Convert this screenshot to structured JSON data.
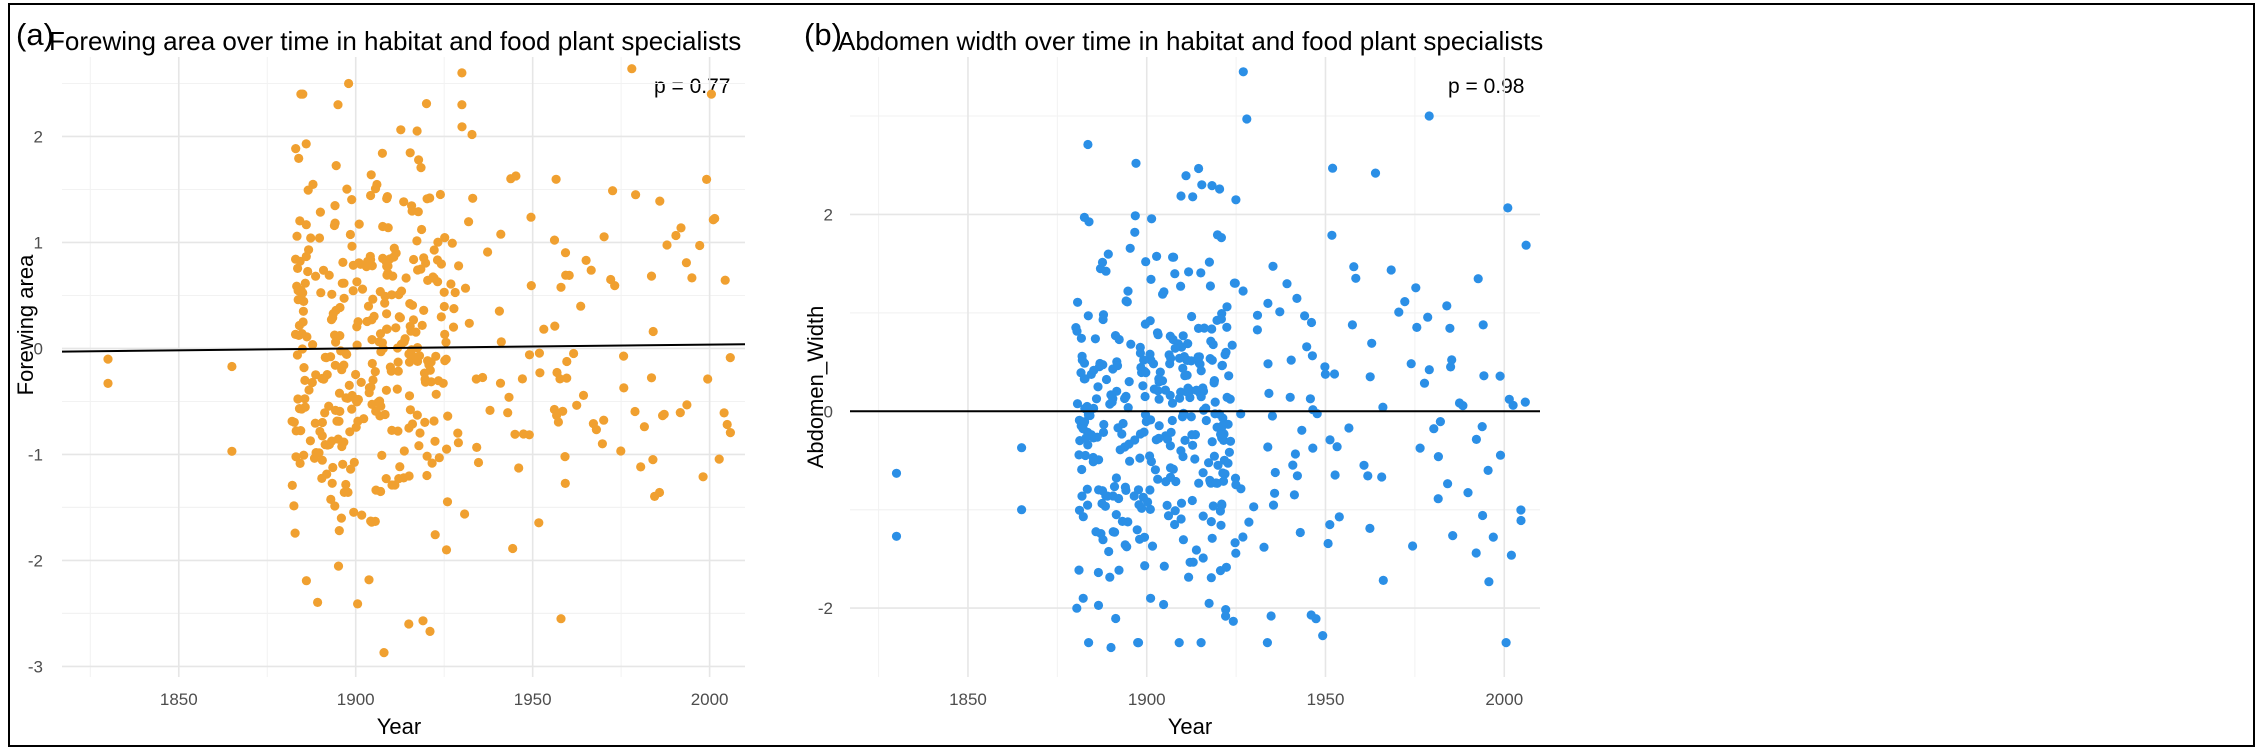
{
  "figure": {
    "panels": [
      {
        "panel_label": "(a)",
        "p_text": "p = 0.77"
      },
      {
        "panel_label": "(b)",
        "p_text": "p = 0.98"
      }
    ]
  },
  "chart_data": [
    {
      "type": "scatter",
      "title": "Forewing area over time in habitat and food plant specialists",
      "xlabel": "Year",
      "ylabel": "Forewing area",
      "xlim": [
        1817,
        2010
      ],
      "ylim": [
        -3.1,
        2.75
      ],
      "x_ticks": [
        1850,
        1900,
        1950,
        2000
      ],
      "y_ticks": [
        -3,
        -2,
        -1,
        0,
        1,
        2
      ],
      "point_color": "#F0A030",
      "regression_line": {
        "x": [
          1817,
          2010
        ],
        "y": [
          -0.03,
          0.04
        ],
        "color": "#000000"
      },
      "annotation": "p = 0.77",
      "n_points": 620,
      "seed": 11,
      "points_fixed": [
        [
          1830,
          -0.1
        ],
        [
          1830,
          -0.33
        ],
        [
          1865,
          -0.17
        ],
        [
          1865,
          -0.97
        ],
        [
          1908,
          -2.87
        ],
        [
          1915,
          -2.6
        ],
        [
          1921,
          -2.67
        ],
        [
          1919,
          -2.57
        ],
        [
          1930,
          2.6
        ],
        [
          1930,
          2.3
        ],
        [
          1978,
          2.64
        ],
        [
          1958,
          -2.55
        ],
        [
          1895,
          2.3
        ],
        [
          1898,
          2.5
        ],
        [
          1920,
          2.31
        ],
        [
          1886,
          1.93
        ]
      ],
      "density": [
        {
          "x": [
            1882,
            1926
          ],
          "weight": 0.55
        },
        {
          "x": [
            1926,
            1962
          ],
          "weight": 0.22
        },
        {
          "x": [
            1962,
            2006
          ],
          "weight": 0.23
        }
      ]
    },
    {
      "type": "scatter",
      "title": "Abdomen width over time in habitat and food plant specialists",
      "xlabel": "Year",
      "ylabel": "Abdomen_Width",
      "xlim": [
        1817,
        2010
      ],
      "ylim": [
        -2.7,
        3.6
      ],
      "x_ticks": [
        1850,
        1900,
        1950,
        2000
      ],
      "y_ticks": [
        -2,
        0,
        2
      ],
      "point_color": "#2B8FE6",
      "regression_line": {
        "x": [
          1817,
          2010
        ],
        "y": [
          0.0,
          0.0
        ],
        "color": "#000000"
      },
      "annotation": "p = 0.98",
      "n_points": 640,
      "seed": 23,
      "points_fixed": [
        [
          1830,
          -0.63
        ],
        [
          1830,
          -1.27
        ],
        [
          1865,
          -0.37
        ],
        [
          1865,
          -1.0
        ],
        [
          1927,
          3.45
        ],
        [
          1928,
          2.97
        ],
        [
          1979,
          3.0
        ],
        [
          1890,
          -2.4
        ],
        [
          1946,
          -2.07
        ],
        [
          1897,
          2.52
        ],
        [
          1964,
          2.42
        ],
        [
          1952,
          2.47
        ]
      ],
      "density": [
        {
          "x": [
            1880,
            1925
          ],
          "weight": 0.56
        },
        {
          "x": [
            1925,
            1960
          ],
          "weight": 0.2
        },
        {
          "x": [
            1960,
            2007
          ],
          "weight": 0.24
        }
      ]
    }
  ]
}
